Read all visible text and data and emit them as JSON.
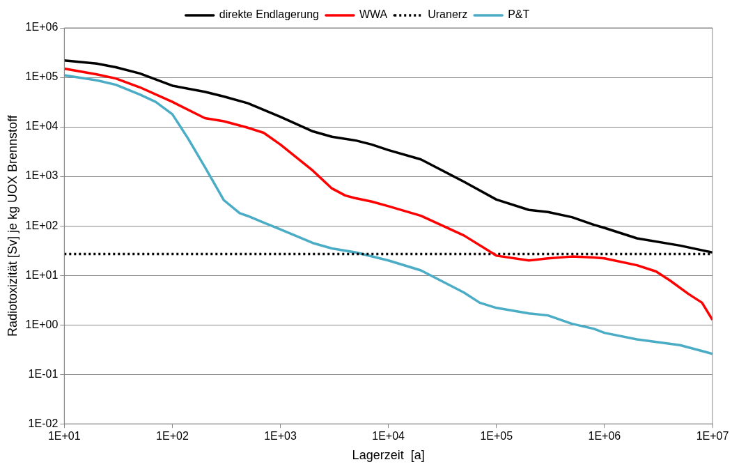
{
  "chart_data": {
    "type": "line",
    "xlabel": "Lagerzeit  [a]",
    "ylabel": "Radiotoxizität [Sv] je kg UOX Brennstoff",
    "log": "xy",
    "grid": "y",
    "legend": "top",
    "marker": "none",
    "xlim": [
      10,
      10000000
    ],
    "ylim": [
      0.01,
      1000000
    ],
    "xticks": [
      {
        "value": 10,
        "label": "1E+01"
      },
      {
        "value": 100,
        "label": "1E+02"
      },
      {
        "value": 1000,
        "label": "1E+03"
      },
      {
        "value": 10000,
        "label": "1E+04"
      },
      {
        "value": 100000,
        "label": "1E+05"
      },
      {
        "value": 1000000,
        "label": "1E+06"
      },
      {
        "value": 10000000,
        "label": "1E+07"
      }
    ],
    "yticks": [
      {
        "value": 0.01,
        "label": "1E-02"
      },
      {
        "value": 0.1,
        "label": "1E-01"
      },
      {
        "value": 1,
        "label": "1E+00"
      },
      {
        "value": 10,
        "label": "1E+01"
      },
      {
        "value": 100,
        "label": "1E+02"
      },
      {
        "value": 1000,
        "label": "1E+03"
      },
      {
        "value": 10000,
        "label": "1E+04"
      },
      {
        "value": 100000,
        "label": "1E+05"
      },
      {
        "value": 1000000,
        "label": "1E+06"
      }
    ],
    "series": [
      {
        "name": "direkte Endlagerung",
        "color": "#000000",
        "line_style": "solid",
        "x": [
          10,
          20,
          30,
          50,
          100,
          200,
          300,
          500,
          1000,
          2000,
          3000,
          5000,
          7000,
          10000,
          20000,
          50000,
          100000,
          200000,
          300000,
          500000,
          800000,
          1000000,
          2000000,
          5000000,
          10000000
        ],
        "values": [
          220000,
          190000,
          160000,
          120000,
          68000,
          51000,
          41000,
          30000,
          16000,
          8100,
          6300,
          5300,
          4400,
          3400,
          2200,
          780,
          340,
          210,
          190,
          150,
          105,
          91,
          56,
          40,
          29
        ]
      },
      {
        "name": "WWA",
        "color": "#ff0000",
        "line_style": "solid",
        "x": [
          10,
          20,
          30,
          50,
          100,
          200,
          300,
          500,
          700,
          1000,
          2000,
          3000,
          4000,
          5000,
          7000,
          10000,
          20000,
          50000,
          100000,
          200000,
          300000,
          500000,
          800000,
          1000000,
          2000000,
          3000000,
          4000000,
          6000000,
          8000000,
          10000000
        ],
        "values": [
          150000,
          115000,
          95000,
          63000,
          32000,
          15000,
          13000,
          9600,
          7600,
          4400,
          1300,
          570,
          410,
          360,
          310,
          250,
          160,
          64,
          25,
          20,
          22,
          24,
          23,
          22,
          16,
          12,
          8,
          4.2,
          2.8,
          1.26
        ]
      },
      {
        "name": "Uranerz",
        "color": "#000000",
        "line_style": "dotted",
        "x": [
          10,
          10000000
        ],
        "values": [
          27,
          27
        ]
      },
      {
        "name": "P&T",
        "color": "#4bacc6",
        "line_style": "solid",
        "x": [
          10,
          20,
          30,
          50,
          70,
          100,
          140,
          200,
          300,
          420,
          500,
          700,
          1000,
          2000,
          3000,
          5000,
          10000,
          20000,
          50000,
          70000,
          100000,
          200000,
          300000,
          500000,
          800000,
          1000000,
          2000000,
          5000000,
          10000000
        ],
        "values": [
          110000,
          87000,
          71000,
          45000,
          32000,
          18000,
          5800,
          1550,
          330,
          180,
          158,
          117,
          85,
          45,
          35,
          29,
          20,
          12.6,
          4.5,
          2.8,
          2.2,
          1.7,
          1.55,
          1.05,
          0.83,
          0.69,
          0.51,
          0.39,
          0.26
        ]
      }
    ]
  }
}
